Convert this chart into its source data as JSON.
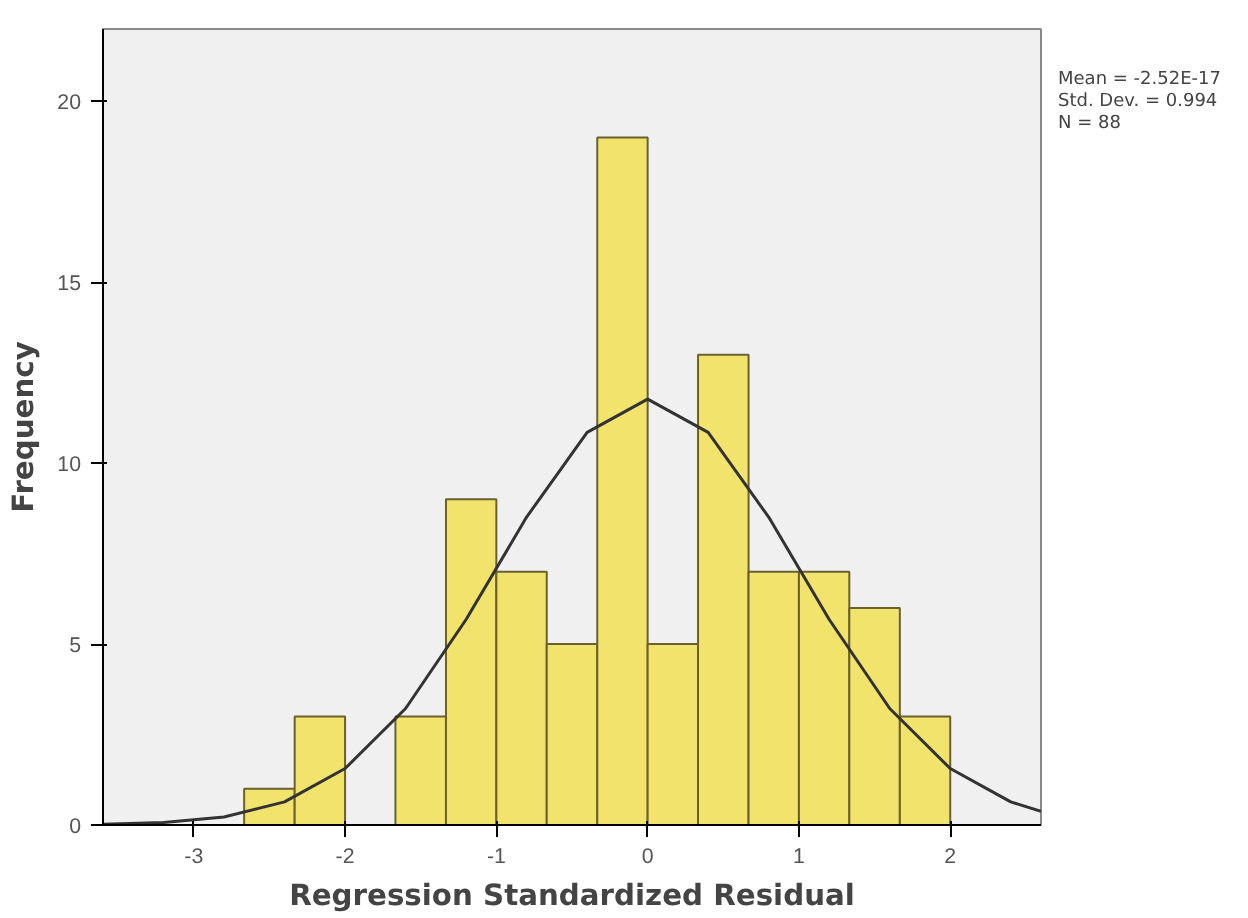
{
  "chart_data": {
    "type": "histogram",
    "xlabel": "Regression Standardized Residual",
    "ylabel": "Frequency",
    "bins": [
      -2.667,
      -2.333,
      -2.0,
      -1.667,
      -1.333,
      -1.0,
      -0.667,
      -0.333,
      0.0,
      0.333,
      0.667,
      1.0,
      1.333,
      1.667,
      2.0
    ],
    "values": [
      1,
      3,
      0,
      3,
      9,
      7,
      5,
      19,
      5,
      13,
      7,
      7,
      6,
      3
    ],
    "color": "#f2e36c",
    "series": [
      {
        "type": "line",
        "color": "#333333",
        "x": [
          -3.6,
          -3.2,
          -2.8,
          -2.4,
          -2.0,
          -1.6,
          -1.2,
          -0.8,
          -0.4,
          0.0,
          0.4,
          0.8,
          1.2,
          1.6,
          2.0,
          2.4,
          2.6
        ],
        "values": [
          0.02,
          0.07,
          0.22,
          0.64,
          1.56,
          3.22,
          5.68,
          8.51,
          10.85,
          11.77,
          10.85,
          8.51,
          5.68,
          3.22,
          1.56,
          0.64,
          0.38
        ]
      }
    ],
    "xlim": [
      -3.6,
      2.6
    ],
    "ylim": [
      0,
      22
    ],
    "xticks": [
      -3,
      -2,
      -1,
      0,
      1,
      2
    ],
    "yticks": [
      0,
      5,
      10,
      15,
      20
    ],
    "grid": false,
    "annotations": [
      "Mean = -2.52E-17",
      "Std. Dev. = 0.994",
      "N = 88"
    ]
  }
}
